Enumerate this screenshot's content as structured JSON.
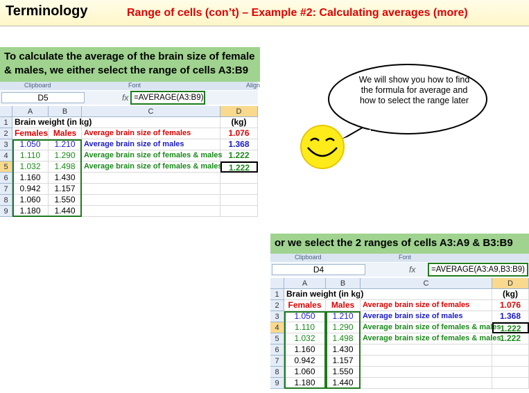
{
  "header": {
    "title": "Terminology",
    "subtitle": "Range of cells (con’t) – Example #2: Calculating averages (more)"
  },
  "callout_1": "To calculate the average of the brain size of female & males, we either select the range of cells  A3:B9",
  "speech": "We will show you how to find the formula for average and how to select the range later",
  "callout_2": "or  we select the 2 ranges of cells  A3:A9 & B3:B9",
  "sheet_1": {
    "ribbon": [
      "Clipboard",
      "Font",
      "Align"
    ],
    "name_box": "D5",
    "fx": "fx",
    "formula": "=AVERAGE(A3:B9)",
    "columns": [
      "A",
      "B",
      "C",
      "D"
    ],
    "row_labels": [
      "1",
      "2",
      "3",
      "4",
      "5",
      "6",
      "7",
      "8",
      "9"
    ],
    "rows": [
      [
        "Brain weight (in kg)",
        null,
        null,
        "(kg)"
      ],
      [
        "Females",
        "Males",
        "Average brain size of females",
        "1.076"
      ],
      [
        "1.050",
        "1.210",
        "Average brain size of males",
        "1.368"
      ],
      [
        "1.110",
        "1.290",
        "Average brain size of females & males",
        "1.222"
      ],
      [
        "1.032",
        "1.498",
        "Average brain size of females & males",
        "1.222"
      ],
      [
        "1.160",
        "1.430",
        null,
        null
      ],
      [
        "0.942",
        "1.157",
        null,
        null
      ],
      [
        "1.060",
        "1.550",
        null,
        null
      ],
      [
        "1.180",
        "1.440",
        null,
        null
      ]
    ]
  },
  "sheet_2": {
    "ribbon": [
      "Clipboard",
      "Font"
    ],
    "name_box": "D4",
    "fx": "fx",
    "formula": "=AVERAGE(A3:A9,B3:B9)",
    "columns": [
      "A",
      "B",
      "C",
      "D"
    ],
    "row_labels": [
      "1",
      "2",
      "3",
      "4",
      "5",
      "6",
      "7",
      "8",
      "9"
    ],
    "rows": [
      [
        "Brain weight (in kg)",
        null,
        null,
        "(kg)"
      ],
      [
        "Females",
        "Males",
        "Average brain size of females",
        "1.076"
      ],
      [
        "1.050",
        "1.210",
        "Average brain size of males",
        "1.368"
      ],
      [
        "1.110",
        "1.290",
        "Average brain size of females & males",
        "1.222"
      ],
      [
        "1.032",
        "1.498",
        "Average brain size of females & males",
        "1.222"
      ],
      [
        "1.160",
        "1.430",
        null,
        null
      ],
      [
        "0.942",
        "1.157",
        null,
        null
      ],
      [
        "1.060",
        "1.550",
        null,
        null
      ],
      [
        "1.180",
        "1.440",
        null,
        null
      ]
    ]
  }
}
